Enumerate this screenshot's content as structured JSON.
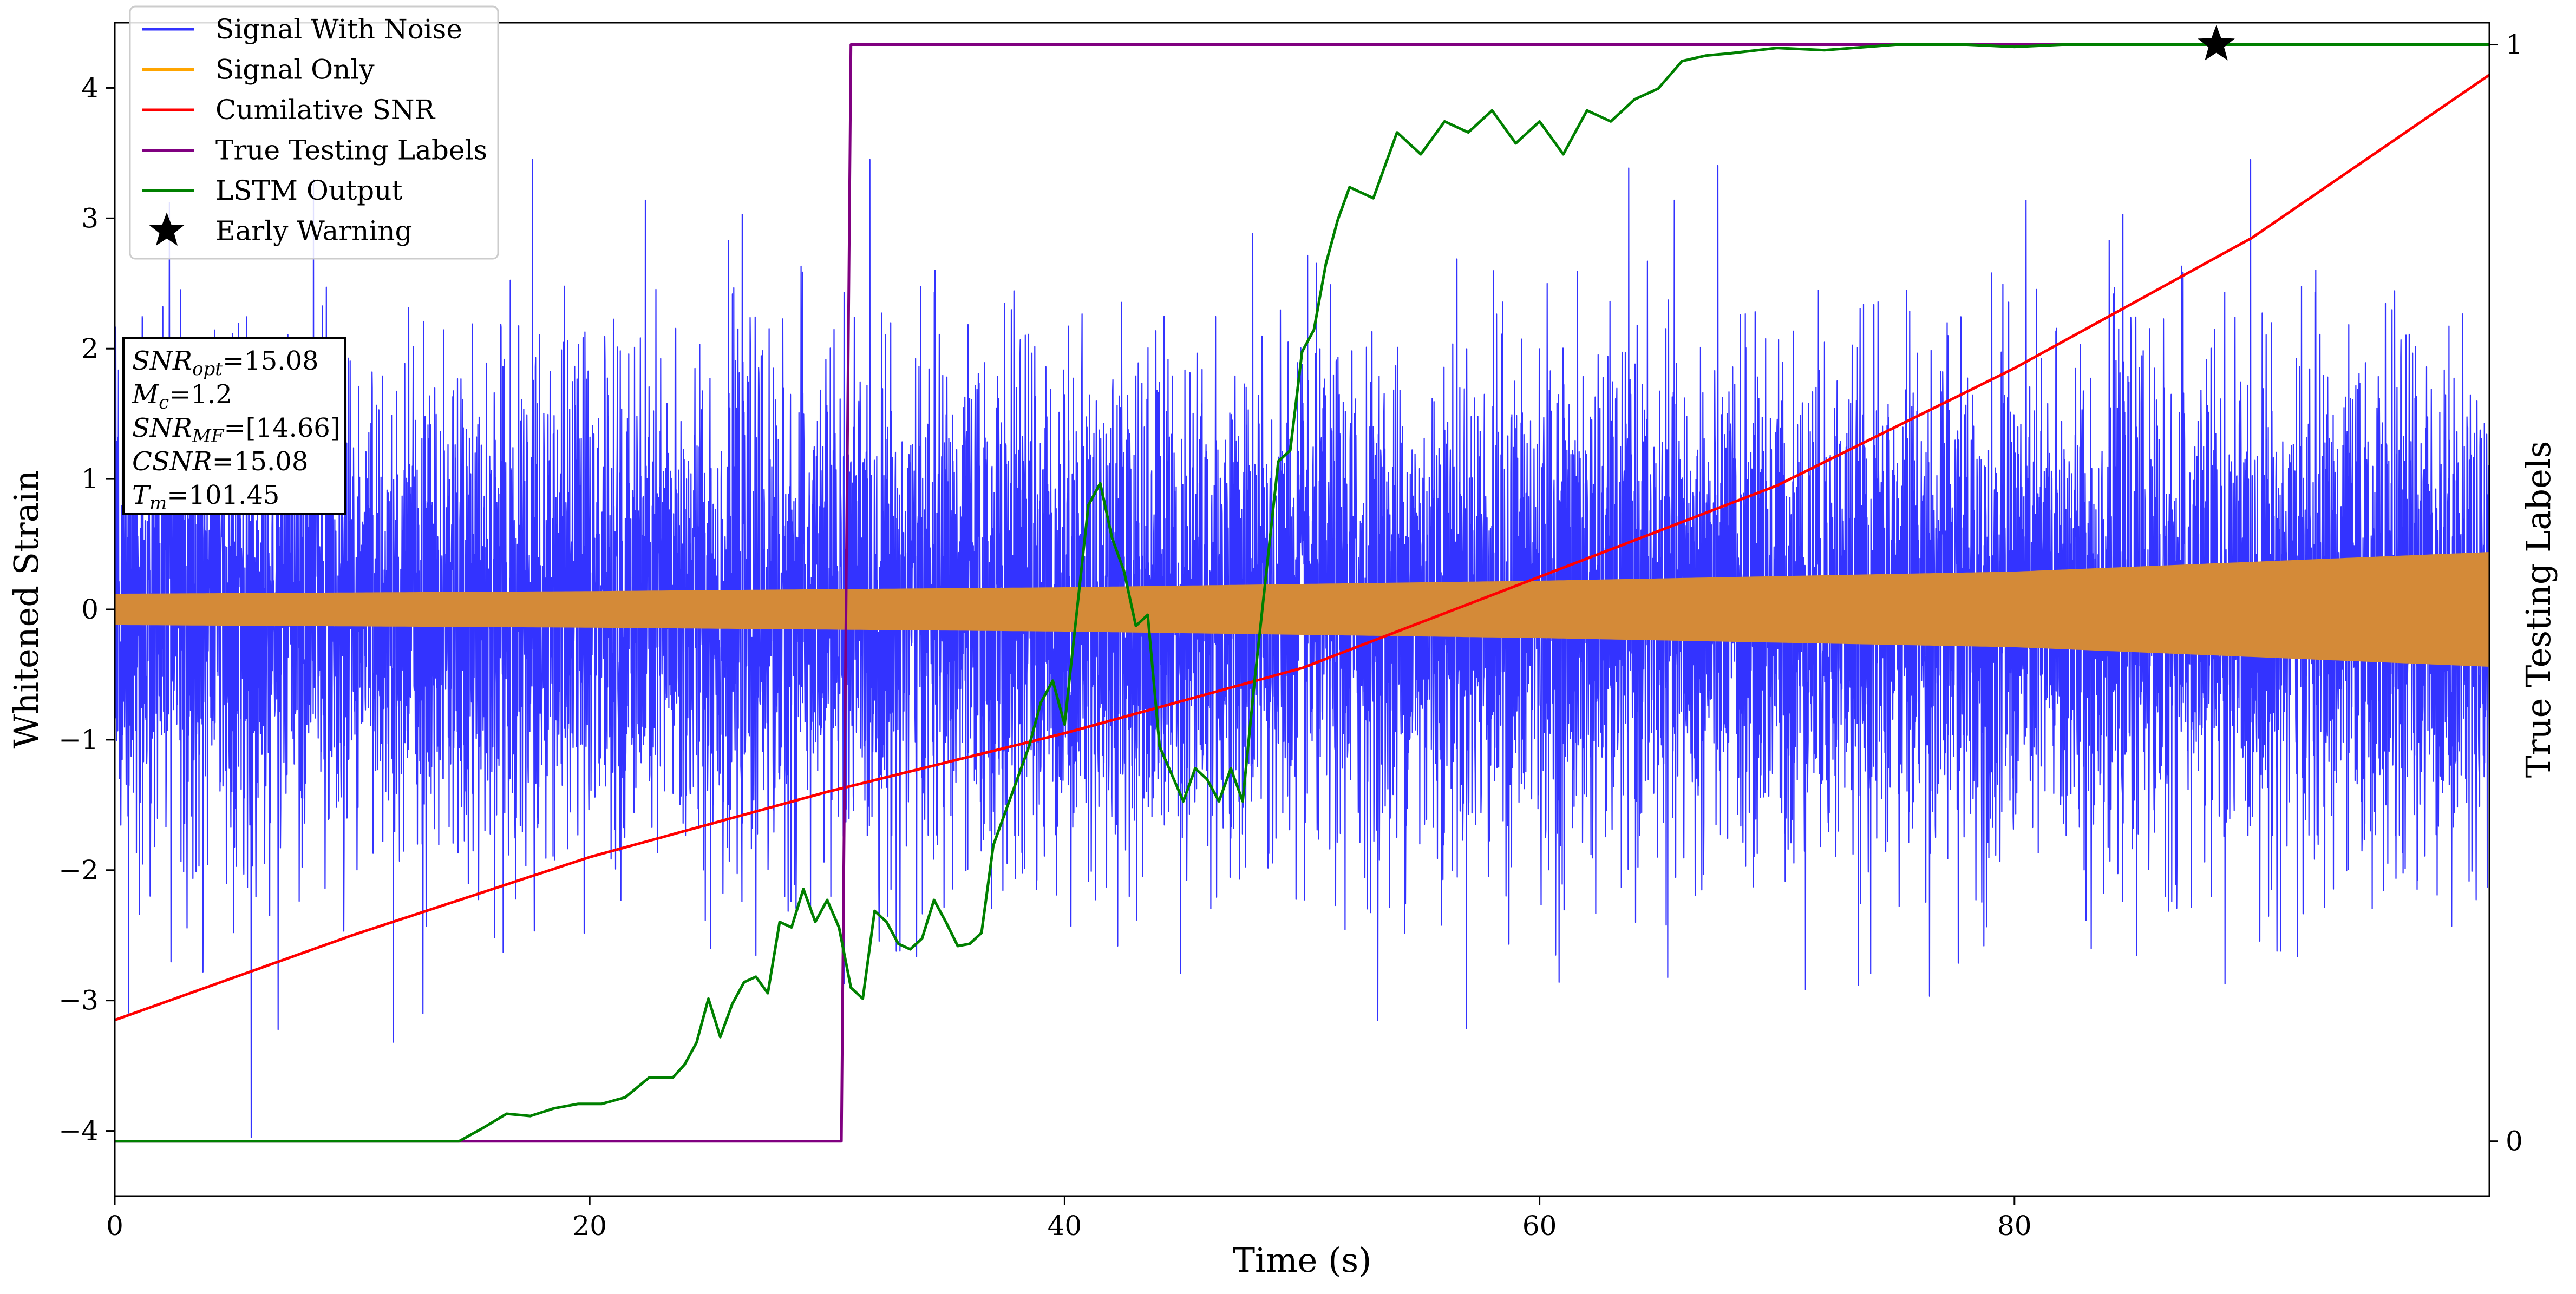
{
  "chart_data": {
    "type": "line",
    "xlabel": "Time (s)",
    "ylabel": "Whitened Strain",
    "y2label": "True Testing Labels",
    "xlim": [
      0,
      100
    ],
    "ylim": [
      -4.5,
      4.5
    ],
    "y2lim": [
      -0.05,
      1.02
    ],
    "xticks": [
      0,
      20,
      40,
      60,
      80
    ],
    "yticks": [
      -4,
      -3,
      -2,
      -1,
      0,
      1,
      2,
      3,
      4
    ],
    "yticklabels": [
      "−4",
      "−3",
      "−2",
      "−1",
      "0",
      "1",
      "2",
      "3",
      "4"
    ],
    "y2ticks": [
      0,
      1
    ],
    "grid": false,
    "legend_position": "top-left",
    "series": [
      {
        "name": "Signal With Noise",
        "color": "#3333ff",
        "axis": "left",
        "style": "dense-noise",
        "noise_std": 0.95,
        "peak_min": -4.05,
        "peak_max": 3.45
      },
      {
        "name": "Signal Only",
        "color": "#ffa500",
        "axis": "left",
        "style": "chirp-envelope",
        "envelope": {
          "x": [
            0,
            20,
            40,
            60,
            80,
            100
          ],
          "amp": [
            0.12,
            0.14,
            0.17,
            0.22,
            0.29,
            0.44
          ]
        }
      },
      {
        "name": "Cumilative SNR",
        "color": "#ff0000",
        "axis": "left",
        "x": [
          0,
          10,
          20,
          30,
          40,
          50,
          60,
          70,
          80,
          90,
          100
        ],
        "y": [
          -3.15,
          -2.5,
          -1.9,
          -1.4,
          -0.95,
          -0.45,
          0.25,
          0.95,
          1.85,
          2.85,
          4.1
        ]
      },
      {
        "name": "True Testing Labels",
        "color": "#800080",
        "axis": "right",
        "x": [
          0,
          30.6,
          31.0,
          100
        ],
        "y": [
          0,
          0,
          1,
          1
        ]
      },
      {
        "name": "LSTM Output",
        "color": "#008000",
        "axis": "right",
        "x": [
          0,
          14.5,
          15.5,
          16.5,
          17.5,
          18.5,
          19.5,
          20.5,
          21.5,
          22.5,
          23.5,
          24.0,
          24.5,
          25.0,
          25.5,
          26.0,
          26.5,
          27.0,
          27.5,
          28.0,
          28.5,
          29.0,
          29.5,
          30.0,
          30.5,
          31.0,
          31.5,
          32.0,
          32.5,
          33.0,
          33.5,
          34.0,
          34.5,
          35.0,
          35.5,
          36.0,
          36.5,
          37.0,
          37.5,
          38.0,
          38.5,
          39.0,
          39.5,
          40.0,
          40.5,
          41.0,
          41.5,
          42.0,
          42.5,
          43.0,
          43.5,
          44.0,
          44.5,
          45.0,
          45.5,
          46.0,
          46.5,
          47.0,
          47.5,
          48.0,
          48.5,
          49.0,
          49.5,
          50.0,
          50.5,
          51.0,
          51.5,
          52.0,
          53.0,
          54.0,
          55.0,
          56.0,
          57.0,
          58.0,
          59.0,
          60.0,
          61.0,
          62.0,
          63.0,
          64.0,
          65.0,
          66.0,
          67.0,
          68.0,
          70.0,
          72.0,
          75.0,
          78.0,
          80.0,
          82.0,
          85.0,
          88.0,
          90.0,
          95.0,
          100.0
        ],
        "y": [
          0.0,
          0.0,
          0.012,
          0.025,
          0.023,
          0.03,
          0.034,
          0.034,
          0.04,
          0.058,
          0.058,
          0.07,
          0.09,
          0.13,
          0.095,
          0.125,
          0.145,
          0.15,
          0.135,
          0.2,
          0.195,
          0.23,
          0.2,
          0.22,
          0.195,
          0.14,
          0.13,
          0.21,
          0.2,
          0.18,
          0.175,
          0.185,
          0.22,
          0.2,
          0.178,
          0.18,
          0.19,
          0.27,
          0.3,
          0.33,
          0.36,
          0.4,
          0.42,
          0.38,
          0.48,
          0.58,
          0.6,
          0.55,
          0.52,
          0.47,
          0.48,
          0.36,
          0.335,
          0.31,
          0.34,
          0.33,
          0.31,
          0.34,
          0.31,
          0.42,
          0.52,
          0.62,
          0.63,
          0.72,
          0.74,
          0.8,
          0.84,
          0.87,
          0.86,
          0.92,
          0.9,
          0.93,
          0.92,
          0.94,
          0.91,
          0.93,
          0.9,
          0.94,
          0.93,
          0.95,
          0.96,
          0.985,
          0.99,
          0.992,
          0.997,
          0.995,
          1.0,
          1.0,
          0.998,
          1.0,
          1.0,
          1.0,
          1.0,
          1.0,
          1.0
        ]
      },
      {
        "name": "Early Warning",
        "color": "#000000",
        "axis": "right",
        "marker": "star",
        "x": [
          88.5
        ],
        "y": [
          1.0
        ]
      }
    ],
    "annotation_box": {
      "lines": [
        {
          "label": "SNR",
          "sub": "opt",
          "value": "=15.08"
        },
        {
          "label": "M",
          "sub": "c",
          "value": "=1.2"
        },
        {
          "label": "SNR",
          "sub": "MF",
          "value": "=[14.66]"
        },
        {
          "label": "CSNR",
          "sub": "",
          "value": "=15.08"
        },
        {
          "label": "T",
          "sub": "m",
          "value": "=101.45"
        }
      ]
    }
  }
}
